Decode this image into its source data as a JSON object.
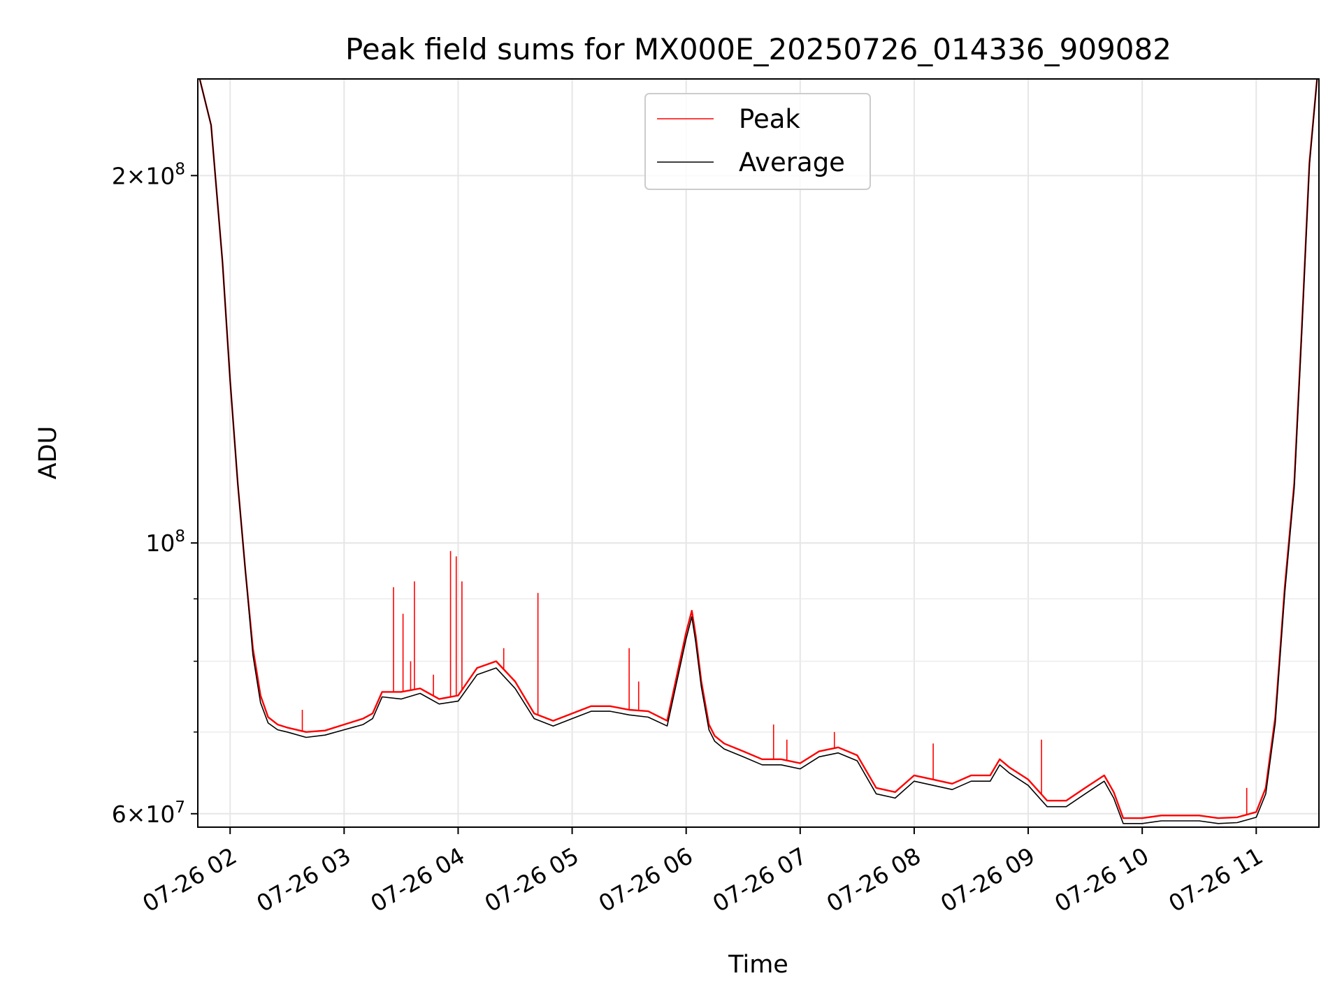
{
  "chart_data": {
    "type": "line",
    "title": "Peak field sums for MX000E_20250726_014336_909082",
    "xlabel": "Time",
    "ylabel": "ADU",
    "x_scale": "time",
    "y_scale": "log",
    "xlim": [
      "2025-07-26 01:43",
      "2025-07-26 11:33"
    ],
    "ylim": [
      58500000,
      240000000
    ],
    "x_ticks": [
      "07-26 02",
      "07-26 03",
      "07-26 04",
      "07-26 05",
      "07-26 06",
      "07-26 07",
      "07-26 08",
      "07-26 09",
      "07-26 10",
      "07-26 11"
    ],
    "y_ticks": [
      {
        "value": 60000000,
        "label": "6×10⁷",
        "mantissa": "6",
        "exponent": "7"
      },
      {
        "value": 100000000,
        "label": "10⁸",
        "mantissa": "",
        "exponent": "8"
      },
      {
        "value": 200000000,
        "label": "2×10⁸",
        "mantissa": "2",
        "exponent": "8"
      }
    ],
    "y_minor_ticks": [
      70000000,
      80000000,
      90000000
    ],
    "grid": true,
    "legend": {
      "position": "top-center",
      "entries": [
        "Peak",
        "Average"
      ]
    },
    "series": [
      {
        "name": "Peak",
        "color": "#ff0000",
        "x": [
          "2025-07-26 01:44",
          "2025-07-26 01:50",
          "2025-07-26 01:56",
          "2025-07-26 02:00",
          "2025-07-26 02:04",
          "2025-07-26 02:08",
          "2025-07-26 02:12",
          "2025-07-26 02:16",
          "2025-07-26 02:20",
          "2025-07-26 02:25",
          "2025-07-26 02:30",
          "2025-07-26 02:40",
          "2025-07-26 02:50",
          "2025-07-26 03:00",
          "2025-07-26 03:10",
          "2025-07-26 03:15",
          "2025-07-26 03:20",
          "2025-07-26 03:30",
          "2025-07-26 03:40",
          "2025-07-26 03:50",
          "2025-07-26 04:00",
          "2025-07-26 04:10",
          "2025-07-26 04:20",
          "2025-07-26 04:30",
          "2025-07-26 04:40",
          "2025-07-26 04:50",
          "2025-07-26 05:00",
          "2025-07-26 05:10",
          "2025-07-26 05:20",
          "2025-07-26 05:30",
          "2025-07-26 05:40",
          "2025-07-26 05:50",
          "2025-07-26 06:00",
          "2025-07-26 06:03",
          "2025-07-26 06:05",
          "2025-07-26 06:08",
          "2025-07-26 06:12",
          "2025-07-26 06:15",
          "2025-07-26 06:20",
          "2025-07-26 06:30",
          "2025-07-26 06:40",
          "2025-07-26 06:50",
          "2025-07-26 07:00",
          "2025-07-26 07:10",
          "2025-07-26 07:20",
          "2025-07-26 07:30",
          "2025-07-26 07:40",
          "2025-07-26 07:50",
          "2025-07-26 08:00",
          "2025-07-26 08:10",
          "2025-07-26 08:20",
          "2025-07-26 08:30",
          "2025-07-26 08:40",
          "2025-07-26 08:45",
          "2025-07-26 08:50",
          "2025-07-26 09:00",
          "2025-07-26 09:10",
          "2025-07-26 09:20",
          "2025-07-26 09:30",
          "2025-07-26 09:40",
          "2025-07-26 09:45",
          "2025-07-26 09:50",
          "2025-07-26 10:00",
          "2025-07-26 10:10",
          "2025-07-26 10:20",
          "2025-07-26 10:30",
          "2025-07-26 10:40",
          "2025-07-26 10:50",
          "2025-07-26 11:00",
          "2025-07-26 11:05",
          "2025-07-26 11:10",
          "2025-07-26 11:15",
          "2025-07-26 11:20",
          "2025-07-26 11:24",
          "2025-07-26 11:28",
          "2025-07-26 11:32"
        ],
        "values": [
          240000000,
          220000000,
          170000000,
          136000000,
          112000000,
          95000000,
          82000000,
          75000000,
          72000000,
          71000000,
          70600000,
          70000000,
          70200000,
          71000000,
          71800000,
          72500000,
          75500000,
          75500000,
          76000000,
          74500000,
          75000000,
          79000000,
          80000000,
          77000000,
          72500000,
          71500000,
          72500000,
          73500000,
          73500000,
          73000000,
          72800000,
          71500000,
          84500000,
          88000000,
          84000000,
          77000000,
          71000000,
          69500000,
          68500000,
          67500000,
          66500000,
          66500000,
          66000000,
          67500000,
          68000000,
          67000000,
          63000000,
          62500000,
          64500000,
          64000000,
          63500000,
          64500000,
          64500000,
          66500000,
          65500000,
          64000000,
          61500000,
          61500000,
          63000000,
          64500000,
          62500000,
          59500000,
          59500000,
          59800000,
          59800000,
          59800000,
          59500000,
          59600000,
          60200000,
          63000000,
          72000000,
          92000000,
          112000000,
          150000000,
          205000000,
          240000000
        ]
      },
      {
        "name": "Average",
        "color": "#000000",
        "x": [
          "2025-07-26 01:44",
          "2025-07-26 01:50",
          "2025-07-26 01:56",
          "2025-07-26 02:00",
          "2025-07-26 02:04",
          "2025-07-26 02:08",
          "2025-07-26 02:12",
          "2025-07-26 02:16",
          "2025-07-26 02:20",
          "2025-07-26 02:25",
          "2025-07-26 02:30",
          "2025-07-26 02:40",
          "2025-07-26 02:50",
          "2025-07-26 03:00",
          "2025-07-26 03:10",
          "2025-07-26 03:15",
          "2025-07-26 03:20",
          "2025-07-26 03:30",
          "2025-07-26 03:40",
          "2025-07-26 03:50",
          "2025-07-26 04:00",
          "2025-07-26 04:10",
          "2025-07-26 04:20",
          "2025-07-26 04:30",
          "2025-07-26 04:40",
          "2025-07-26 04:50",
          "2025-07-26 05:00",
          "2025-07-26 05:10",
          "2025-07-26 05:20",
          "2025-07-26 05:30",
          "2025-07-26 05:40",
          "2025-07-26 05:50",
          "2025-07-26 06:00",
          "2025-07-26 06:03",
          "2025-07-26 06:05",
          "2025-07-26 06:08",
          "2025-07-26 06:12",
          "2025-07-26 06:15",
          "2025-07-26 06:20",
          "2025-07-26 06:30",
          "2025-07-26 06:40",
          "2025-07-26 06:50",
          "2025-07-26 07:00",
          "2025-07-26 07:10",
          "2025-07-26 07:20",
          "2025-07-26 07:30",
          "2025-07-26 07:40",
          "2025-07-26 07:50",
          "2025-07-26 08:00",
          "2025-07-26 08:10",
          "2025-07-26 08:20",
          "2025-07-26 08:30",
          "2025-07-26 08:40",
          "2025-07-26 08:45",
          "2025-07-26 08:50",
          "2025-07-26 09:00",
          "2025-07-26 09:10",
          "2025-07-26 09:20",
          "2025-07-26 09:30",
          "2025-07-26 09:40",
          "2025-07-26 09:45",
          "2025-07-26 09:50",
          "2025-07-26 10:00",
          "2025-07-26 10:10",
          "2025-07-26 10:20",
          "2025-07-26 10:30",
          "2025-07-26 10:40",
          "2025-07-26 10:50",
          "2025-07-26 11:00",
          "2025-07-26 11:05",
          "2025-07-26 11:10",
          "2025-07-26 11:15",
          "2025-07-26 11:20",
          "2025-07-26 11:24",
          "2025-07-26 11:28",
          "2025-07-26 11:32"
        ],
        "values": [
          240000000,
          220000000,
          170000000,
          136000000,
          112000000,
          95000000,
          81000000,
          74000000,
          71200000,
          70300000,
          70000000,
          69300000,
          69600000,
          70300000,
          71000000,
          71800000,
          74800000,
          74500000,
          75300000,
          73800000,
          74200000,
          78000000,
          79000000,
          76000000,
          71800000,
          70800000,
          71800000,
          72800000,
          72800000,
          72300000,
          72000000,
          70800000,
          83500000,
          87000000,
          83000000,
          76200000,
          70300000,
          68800000,
          67800000,
          66800000,
          65800000,
          65800000,
          65300000,
          66800000,
          67300000,
          66300000,
          62300000,
          61800000,
          63800000,
          63300000,
          62800000,
          63800000,
          63800000,
          65800000,
          64800000,
          63300000,
          60800000,
          60800000,
          62300000,
          63800000,
          61800000,
          58900000,
          58900000,
          59200000,
          59200000,
          59200000,
          58900000,
          59000000,
          59600000,
          62300000,
          71200000,
          91000000,
          111000000,
          149000000,
          204000000,
          240000000
        ]
      }
    ],
    "spikes": [
      {
        "series": "Peak",
        "x": "2025-07-26 02:38",
        "y": 73000000
      },
      {
        "series": "Peak",
        "x": "2025-07-26 03:26",
        "y": 92000000
      },
      {
        "series": "Peak",
        "x": "2025-07-26 03:31",
        "y": 87500000
      },
      {
        "series": "Peak",
        "x": "2025-07-26 03:35",
        "y": 80000000
      },
      {
        "series": "Peak",
        "x": "2025-07-26 03:37",
        "y": 93000000
      },
      {
        "series": "Peak",
        "x": "2025-07-26 03:47",
        "y": 78000000
      },
      {
        "series": "Peak",
        "x": "2025-07-26 03:56",
        "y": 98500000
      },
      {
        "series": "Peak",
        "x": "2025-07-26 03:59",
        "y": 97500000
      },
      {
        "series": "Peak",
        "x": "2025-07-26 04:02",
        "y": 93000000
      },
      {
        "series": "Peak",
        "x": "2025-07-26 04:24",
        "y": 82000000
      },
      {
        "series": "Peak",
        "x": "2025-07-26 04:42",
        "y": 91000000
      },
      {
        "series": "Peak",
        "x": "2025-07-26 05:30",
        "y": 82000000
      },
      {
        "series": "Peak",
        "x": "2025-07-26 05:35",
        "y": 77000000
      },
      {
        "series": "Peak",
        "x": "2025-07-26 06:46",
        "y": 71000000
      },
      {
        "series": "Peak",
        "x": "2025-07-26 06:53",
        "y": 69000000
      },
      {
        "series": "Peak",
        "x": "2025-07-26 07:18",
        "y": 70000000
      },
      {
        "series": "Peak",
        "x": "2025-07-26 08:10",
        "y": 68500000
      },
      {
        "series": "Peak",
        "x": "2025-07-26 09:07",
        "y": 69000000
      },
      {
        "series": "Peak",
        "x": "2025-07-26 10:55",
        "y": 63000000
      }
    ]
  }
}
